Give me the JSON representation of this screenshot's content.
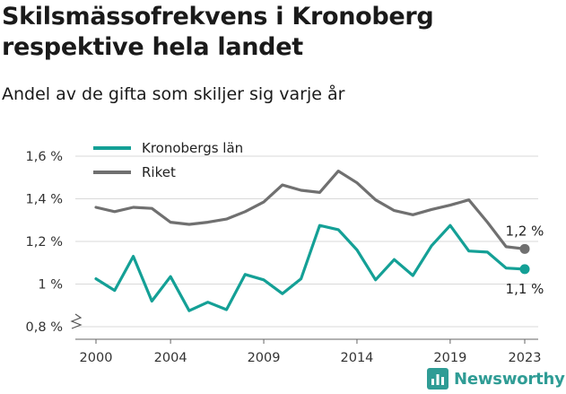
{
  "title": "Skilsmässofrekvens i Kronoberg respektive hela landet",
  "subtitle": "Andel av de gifta som skiljer sig varje år",
  "brand": {
    "name": "Newsworthy",
    "color": "#2f9c95",
    "icon": "bar-chart-logo-icon"
  },
  "chart_data": {
    "type": "line",
    "title": "Skilsmässofrekvens i Kronoberg respektive hela landet",
    "subtitle": "Andel av de gifta som skiljer sig varje år",
    "xlabel": "",
    "ylabel": "",
    "x": [
      2000,
      2001,
      2002,
      2003,
      2004,
      2005,
      2006,
      2007,
      2008,
      2009,
      2010,
      2011,
      2012,
      2013,
      2014,
      2015,
      2016,
      2017,
      2018,
      2019,
      2020,
      2021,
      2022,
      2023
    ],
    "xticks": [
      2000,
      2004,
      2009,
      2014,
      2019,
      2023
    ],
    "xlim": [
      2000,
      2023
    ],
    "ylim": [
      0.8,
      1.6
    ],
    "yticks": [
      {
        "value": 0.8,
        "label": "0,8 %"
      },
      {
        "value": 1.0,
        "label": "1 %"
      },
      {
        "value": 1.2,
        "label": "1,2 %"
      },
      {
        "value": 1.4,
        "label": "1,4 %"
      },
      {
        "value": 1.6,
        "label": "1,6 %"
      }
    ],
    "grid": "horizontal",
    "axis_break": true,
    "legend_position": "top-left",
    "series": [
      {
        "name": "Kronobergs län",
        "color": "#14a096",
        "values": [
          1.025,
          0.97,
          1.13,
          0.92,
          1.035,
          0.875,
          0.915,
          0.88,
          1.045,
          1.02,
          0.955,
          1.025,
          1.275,
          1.255,
          1.16,
          1.02,
          1.115,
          1.04,
          1.18,
          1.275,
          1.155,
          1.15,
          1.075,
          1.07
        ],
        "end_label": "1,1 %"
      },
      {
        "name": "Riket",
        "color": "#707070",
        "values": [
          1.36,
          1.34,
          1.36,
          1.355,
          1.29,
          1.28,
          1.29,
          1.305,
          1.34,
          1.385,
          1.465,
          1.44,
          1.43,
          1.53,
          1.475,
          1.395,
          1.345,
          1.325,
          1.35,
          1.37,
          1.395,
          1.29,
          1.175,
          1.165
        ],
        "end_label": "1,2 %"
      }
    ]
  }
}
